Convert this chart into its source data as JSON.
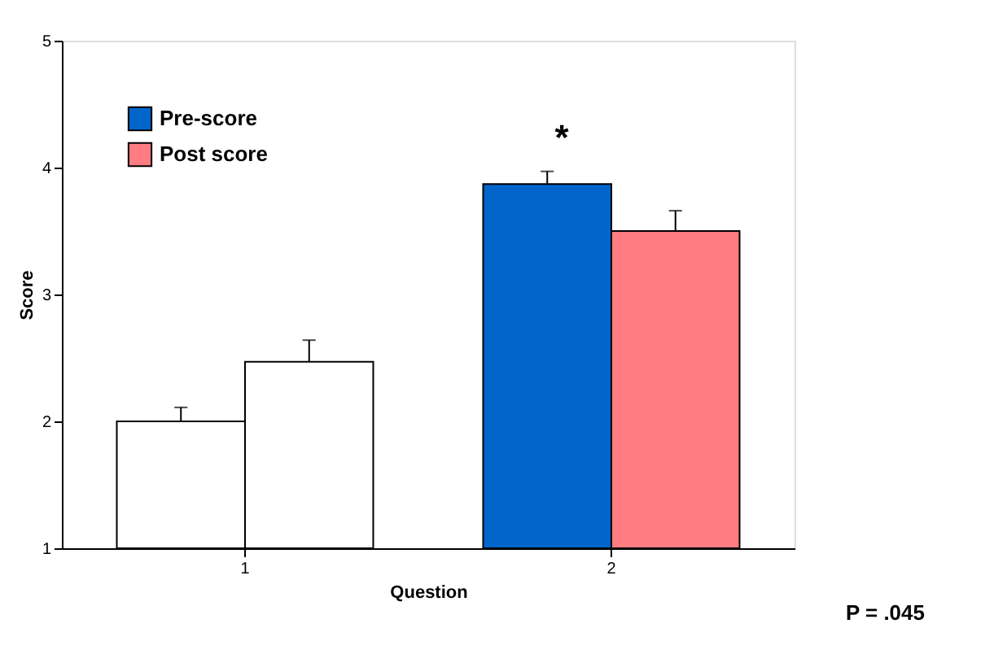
{
  "chart_data": {
    "type": "bar",
    "xlabel": "Question",
    "ylabel": "Score",
    "categories": [
      "1",
      "2"
    ],
    "series": [
      {
        "name": "Pre-score",
        "color": "#0066cc",
        "colors": [
          "#ffffff",
          "#0066cc"
        ],
        "values": [
          2.0,
          3.87
        ],
        "errors": [
          0.11,
          0.1
        ]
      },
      {
        "name": "Post score",
        "color": "#ff7c80",
        "colors": [
          "#ffffff",
          "#ff7c80"
        ],
        "values": [
          2.47,
          3.5
        ],
        "errors": [
          0.17,
          0.16
        ]
      }
    ],
    "ylim": [
      1,
      5
    ],
    "yticks": [
      1,
      2,
      3,
      4,
      5
    ],
    "grid": false,
    "legend": "top left",
    "annotations": [
      "*",
      "P = .045"
    ]
  }
}
